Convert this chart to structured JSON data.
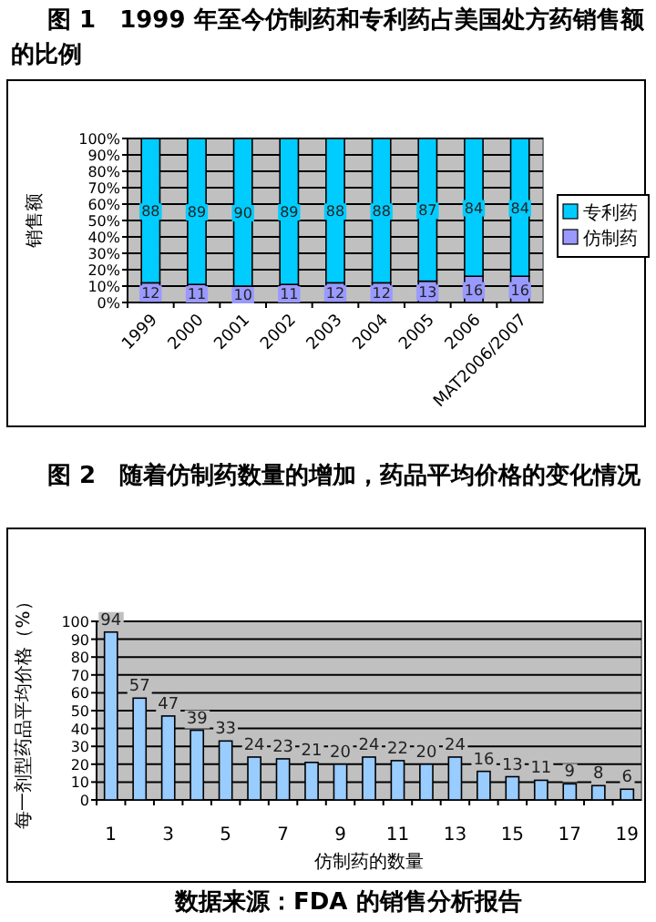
{
  "chart_data": [
    {
      "type": "bar",
      "title": "图 1　1999 年至今仿制药和专利药占美国处方药销售额的比例",
      "ylabel": "销售额",
      "categories": [
        "1999",
        "2000",
        "2001",
        "2002",
        "2003",
        "2004",
        "2005",
        "2006",
        "MAT2006/2007"
      ],
      "stacked": true,
      "series": [
        {
          "name": "仿制药",
          "color": "#9999ff",
          "values": [
            12,
            11,
            10,
            11,
            12,
            12,
            13,
            16,
            16
          ]
        },
        {
          "name": "专利药",
          "color": "#00ccff",
          "values": [
            88,
            89,
            90,
            89,
            88,
            88,
            87,
            84,
            84
          ]
        }
      ],
      "ylim": [
        0,
        100
      ],
      "yticks": [
        {
          "value": 0,
          "label": "0%"
        },
        {
          "value": 10,
          "label": "10%"
        },
        {
          "value": 20,
          "label": "20%"
        },
        {
          "value": 30,
          "label": "30%"
        },
        {
          "value": 40,
          "label": "40%"
        },
        {
          "value": 50,
          "label": "50%"
        },
        {
          "value": 60,
          "label": "60%"
        },
        {
          "value": 70,
          "label": "70%"
        },
        {
          "value": 80,
          "label": "80%"
        },
        {
          "value": 90,
          "label": "90%"
        },
        {
          "value": 100,
          "label": "100%"
        }
      ],
      "grid": "y",
      "legend": "right",
      "data_labels": true
    },
    {
      "type": "bar",
      "title": "图 2　随着仿制药数量的增加，药品平均价格的变化情况",
      "ylabel": "每一剂型药品平均价格（%）",
      "xlabel": "仿制药的数量",
      "categories": [
        "1",
        null,
        "3",
        null,
        "5",
        null,
        "7",
        null,
        "9",
        null,
        "11",
        null,
        "13",
        null,
        "15",
        null,
        "17",
        null,
        "19"
      ],
      "values": [
        94,
        57,
        47,
        39,
        33,
        24,
        23,
        21,
        20,
        24,
        22,
        20,
        24,
        16,
        13,
        11,
        9,
        8,
        6
      ],
      "color": "#99ccff",
      "ylim": [
        0,
        100
      ],
      "yticks": [
        0,
        10,
        20,
        30,
        40,
        50,
        60,
        70,
        80,
        90,
        100
      ],
      "grid": "y",
      "data_labels": true,
      "annotations": [
        "数据来源：FDA 的销售分析报告"
      ]
    }
  ]
}
